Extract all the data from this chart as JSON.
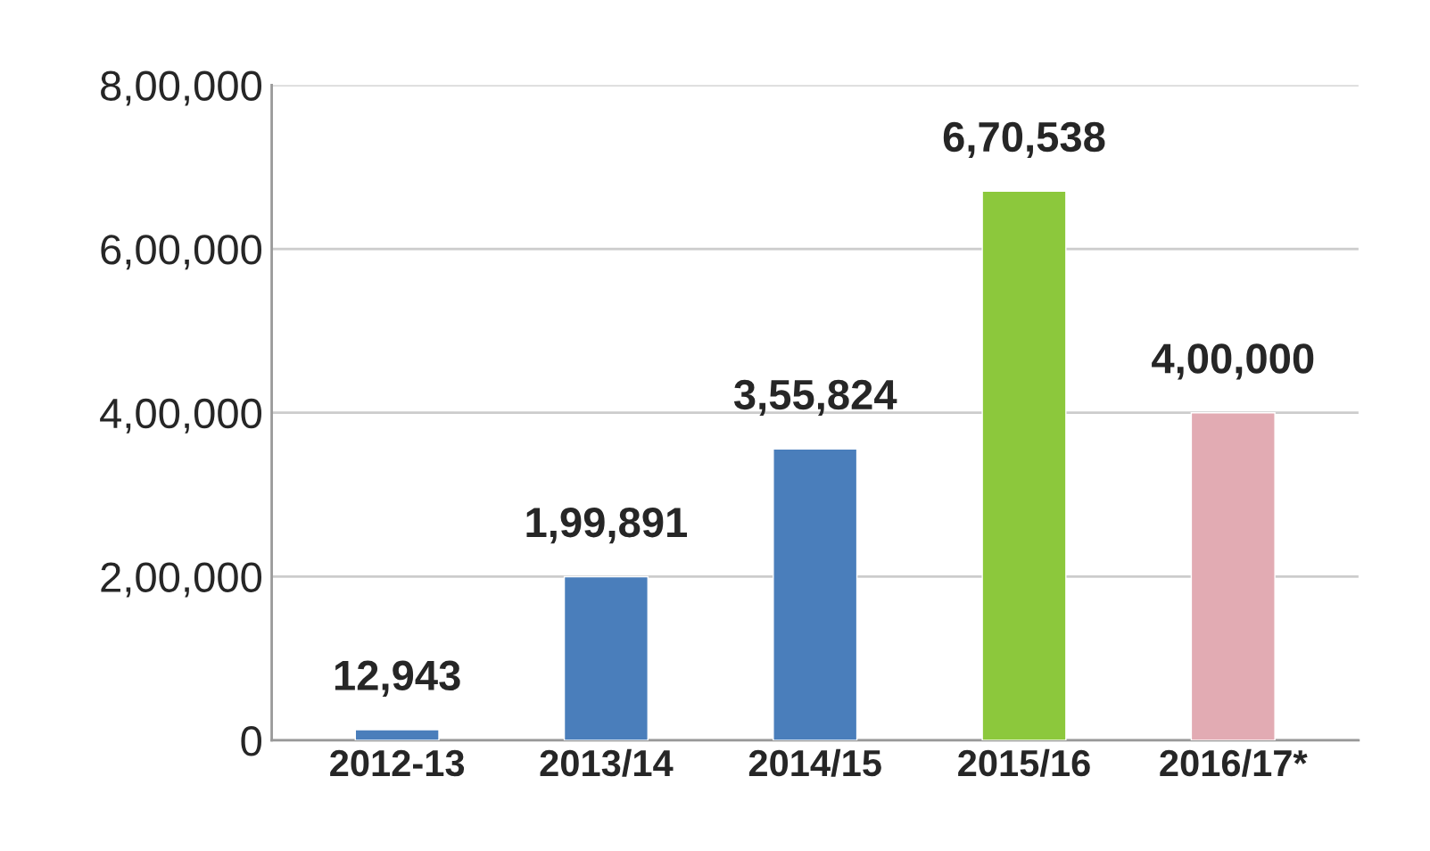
{
  "chart_data": {
    "type": "bar",
    "categories": [
      "2012-13",
      "2013/14",
      "2014/15",
      "2015/16",
      "2016/17*"
    ],
    "values": [
      12943,
      199891,
      355824,
      670538,
      400000
    ],
    "colors": [
      "#4a7ebb",
      "#4a7ebb",
      "#4a7ebb",
      "#8cc83c",
      "#e2abb3"
    ],
    "value_labels": [
      "12,943",
      "1,99,891",
      "3,55,824",
      "6,70,538",
      "4,00,000"
    ],
    "ylim": [
      0,
      800000
    ],
    "yticks": [
      {
        "value": 0,
        "label": "0"
      },
      {
        "value": 200000,
        "label": "2,00,000"
      },
      {
        "value": 400000,
        "label": "4,00,000"
      },
      {
        "value": 600000,
        "label": "6,00,000"
      },
      {
        "value": 800000,
        "label": "8,00,000"
      }
    ],
    "grid": "y"
  }
}
